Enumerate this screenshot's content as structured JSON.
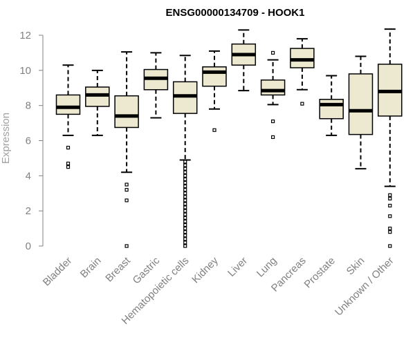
{
  "chart_data": {
    "type": "boxplot",
    "title": "ENSG00000134709 - HOOK1",
    "xlabel": "",
    "ylabel": "Expression",
    "ylim": [
      0,
      12.5
    ],
    "yticks": [
      0,
      2,
      4,
      6,
      8,
      10,
      12
    ],
    "colors": {
      "box_fill": "#ede8d0",
      "stroke": "#000000",
      "axis": "#808080"
    },
    "categories": [
      "Bladder",
      "Brain",
      "Breast",
      "Gastric",
      "Hematopoietic cells",
      "Kidney",
      "Liver",
      "Lung",
      "Pancreas",
      "Prostate",
      "Skin",
      "Unknown / Other"
    ],
    "boxes": [
      {
        "name": "Bladder",
        "whisker_low": 6.3,
        "q1": 7.5,
        "median": 7.9,
        "q3": 8.6,
        "whisker_high": 10.3,
        "outliers": [
          5.6,
          4.7,
          4.5
        ]
      },
      {
        "name": "Brain",
        "whisker_low": 6.3,
        "q1": 7.95,
        "median": 8.6,
        "q3": 9.05,
        "whisker_high": 10.0,
        "outliers": []
      },
      {
        "name": "Breast",
        "whisker_low": 4.2,
        "q1": 6.75,
        "median": 7.4,
        "q3": 8.55,
        "whisker_high": 11.05,
        "outliers": [
          3.5,
          3.2,
          2.6,
          0.0
        ]
      },
      {
        "name": "Gastric",
        "whisker_low": 7.3,
        "q1": 8.9,
        "median": 9.55,
        "q3": 10.05,
        "whisker_high": 11.0,
        "outliers": []
      },
      {
        "name": "Hematopoietic cells",
        "whisker_low": 4.9,
        "q1": 7.55,
        "median": 8.55,
        "q3": 9.35,
        "whisker_high": 10.85,
        "outliers": [
          4.8,
          4.6,
          4.4,
          4.2,
          4.0,
          3.8,
          3.6,
          3.4,
          3.2,
          3.0,
          2.8,
          2.6,
          2.4,
          2.2,
          2.0,
          1.8,
          1.6,
          1.4,
          1.2,
          1.0,
          0.8,
          0.6,
          0.4,
          0.2,
          0.0
        ]
      },
      {
        "name": "Kidney",
        "whisker_low": 7.8,
        "q1": 9.1,
        "median": 9.9,
        "q3": 10.2,
        "whisker_high": 11.1,
        "outliers": [
          6.6
        ]
      },
      {
        "name": "Liver",
        "whisker_low": 8.85,
        "q1": 10.3,
        "median": 10.9,
        "q3": 11.5,
        "whisker_high": 12.3,
        "outliers": []
      },
      {
        "name": "Lung",
        "whisker_low": 8.05,
        "q1": 8.6,
        "median": 8.85,
        "q3": 9.45,
        "whisker_high": 10.6,
        "outliers": [
          11.0,
          7.1,
          6.2
        ]
      },
      {
        "name": "Pancreas",
        "whisker_low": 8.9,
        "q1": 10.15,
        "median": 10.6,
        "q3": 11.25,
        "whisker_high": 11.8,
        "outliers": [
          8.1
        ]
      },
      {
        "name": "Prostate",
        "whisker_low": 6.3,
        "q1": 7.25,
        "median": 8.05,
        "q3": 8.35,
        "whisker_high": 9.7,
        "outliers": []
      },
      {
        "name": "Skin",
        "whisker_low": 4.4,
        "q1": 6.35,
        "median": 7.7,
        "q3": 9.8,
        "whisker_high": 10.8,
        "outliers": []
      },
      {
        "name": "Unknown / Other",
        "whisker_low": 3.4,
        "q1": 7.4,
        "median": 8.8,
        "q3": 10.35,
        "whisker_high": 12.35,
        "outliers": [
          2.9,
          2.7,
          2.3,
          1.7,
          1.0,
          0.8,
          0.0
        ]
      }
    ]
  }
}
